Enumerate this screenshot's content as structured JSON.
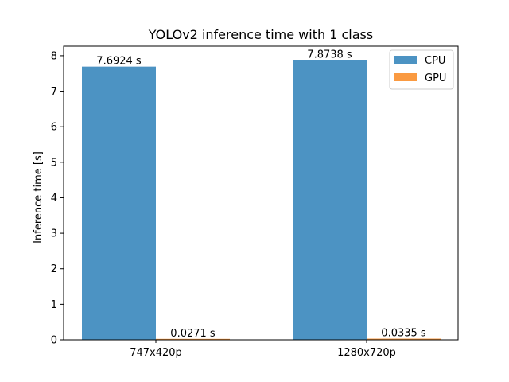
{
  "chart_data": {
    "type": "bar",
    "title": "YOLOv2 inference time with 1 class",
    "xlabel": "",
    "ylabel": "Inference time [s]",
    "categories": [
      "747x420p",
      "1280x720p"
    ],
    "series": [
      {
        "name": "CPU",
        "color": "#4c93c3",
        "values": [
          7.6924,
          7.8738
        ],
        "labels": [
          "7.6924 s",
          "7.8738 s"
        ]
      },
      {
        "name": "GPU",
        "color": "#fa9a41",
        "values": [
          0.0271,
          0.0335
        ],
        "labels": [
          "0.0271 s",
          "0.0335 s"
        ]
      }
    ],
    "ylim": [
      0,
      8.267
    ],
    "yticks": [
      0,
      1,
      2,
      3,
      4,
      5,
      6,
      7,
      8
    ],
    "grid": false,
    "legend": "top-right"
  }
}
